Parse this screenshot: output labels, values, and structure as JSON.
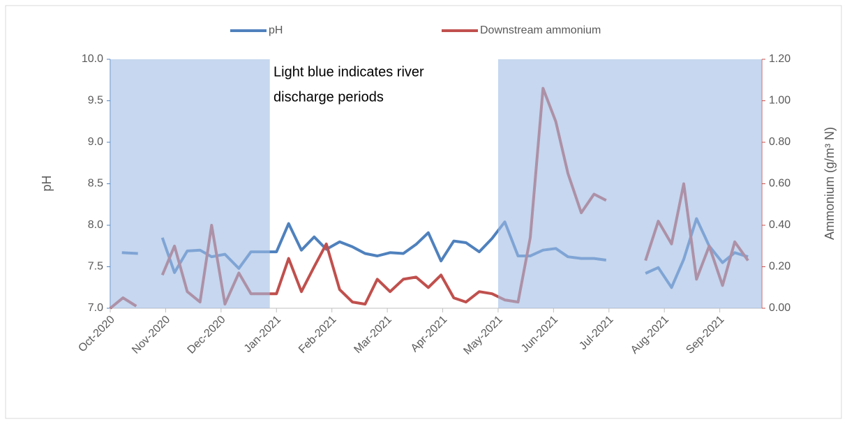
{
  "chart_data": {
    "type": "line",
    "annotation": [
      "Light blue indicates  river",
      "discharge periods"
    ],
    "y_label": "pH",
    "y2_label": "Ammonium (g/m³ N)",
    "xlim": [
      0,
      11.76
    ],
    "xticks": [
      {
        "value": 0,
        "label": "Oct-2020"
      },
      {
        "value": 1,
        "label": "Nov-2020"
      },
      {
        "value": 2,
        "label": "Dec-2020"
      },
      {
        "value": 3,
        "label": "Jan-2021"
      },
      {
        "value": 4,
        "label": "Feb-2021"
      },
      {
        "value": 5,
        "label": "Mar-2021"
      },
      {
        "value": 6,
        "label": "Apr-2021"
      },
      {
        "value": 7,
        "label": "May-2021"
      },
      {
        "value": 8,
        "label": "Jun-2021"
      },
      {
        "value": 9,
        "label": "Jul-2021"
      },
      {
        "value": 10,
        "label": "Aug-2021"
      },
      {
        "value": 11,
        "label": "Sep-2021"
      }
    ],
    "ylim": [
      7,
      10
    ],
    "yticks": [
      {
        "value": 7,
        "label": "7.0"
      },
      {
        "value": 7.5,
        "label": "7.5"
      },
      {
        "value": 8,
        "label": "8.0"
      },
      {
        "value": 8.5,
        "label": "8.5"
      },
      {
        "value": 9,
        "label": "9.0"
      },
      {
        "value": 9.5,
        "label": "9.5"
      },
      {
        "value": 10,
        "label": "10.0"
      }
    ],
    "y2lim": [
      0,
      1.2
    ],
    "y2ticks": [
      {
        "value": 0,
        "label": "0.00"
      },
      {
        "value": 0.2,
        "label": "0.20"
      },
      {
        "value": 0.4,
        "label": "0.40"
      },
      {
        "value": 0.6,
        "label": "0.60"
      },
      {
        "value": 0.8,
        "label": "0.80"
      },
      {
        "value": 1,
        "label": "1.00"
      },
      {
        "value": 1.2,
        "label": "1.20"
      }
    ],
    "shading": {
      "color": "#a0bde4",
      "ranges": [
        [
          0,
          2.88
        ],
        [
          7,
          11.76
        ]
      ]
    },
    "series": [
      {
        "name": "pH",
        "color": "#4f81bd",
        "x": [
          0.21,
          0.5,
          0.72,
          0.94,
          1.16,
          1.39,
          1.62,
          1.83,
          2.07,
          2.32,
          2.54,
          2.77,
          3.0,
          3.22,
          3.45,
          3.68,
          3.9,
          4.14,
          4.37,
          4.6,
          4.82,
          5.05,
          5.29,
          5.52,
          5.74,
          5.97,
          6.2,
          6.42,
          6.66,
          6.89,
          7.12,
          7.36,
          7.58,
          7.81,
          8.04,
          8.26,
          8.5,
          8.73,
          8.95,
          9.3,
          9.66,
          9.89,
          10.13,
          10.35,
          10.58,
          10.81,
          11.05,
          11.27,
          11.51
        ],
        "values": [
          7.67,
          7.66,
          null,
          7.85,
          7.43,
          7.69,
          7.7,
          7.62,
          7.65,
          7.48,
          7.68,
          7.68,
          7.68,
          8.02,
          7.7,
          7.86,
          7.71,
          7.8,
          7.74,
          7.66,
          7.63,
          7.67,
          7.66,
          7.77,
          7.91,
          7.57,
          7.81,
          7.79,
          7.68,
          7.84,
          8.04,
          7.63,
          7.63,
          7.7,
          7.72,
          7.62,
          7.6,
          7.6,
          7.58,
          null,
          7.42,
          7.49,
          7.25,
          7.59,
          8.08,
          7.75,
          7.55,
          7.67,
          7.62
        ]
      },
      {
        "name": "Downstream  ammonium",
        "color": "#c0504d",
        "axis": "y2",
        "x": [
          0,
          0.23,
          0.47,
          0.72,
          0.94,
          1.16,
          1.39,
          1.62,
          1.83,
          2.07,
          2.32,
          2.54,
          2.77,
          3.0,
          3.22,
          3.45,
          3.68,
          3.9,
          4.14,
          4.37,
          4.6,
          4.82,
          5.05,
          5.29,
          5.52,
          5.74,
          5.97,
          6.2,
          6.42,
          6.66,
          6.89,
          7.12,
          7.36,
          7.58,
          7.81,
          8.04,
          8.26,
          8.5,
          8.73,
          8.95,
          9.3,
          9.66,
          9.89,
          10.13,
          10.35,
          10.58,
          10.81,
          11.05,
          11.27,
          11.51
        ],
        "values": [
          0.0,
          0.05,
          0.01,
          null,
          0.16,
          0.3,
          0.08,
          0.03,
          0.4,
          0.02,
          0.17,
          0.07,
          0.07,
          0.07,
          0.24,
          0.08,
          0.2,
          0.31,
          0.09,
          0.03,
          0.02,
          0.14,
          0.08,
          0.14,
          0.15,
          0.1,
          0.16,
          0.05,
          0.03,
          0.08,
          0.07,
          0.04,
          0.03,
          0.34,
          1.06,
          0.9,
          0.65,
          0.46,
          0.55,
          0.52,
          null,
          0.23,
          0.42,
          0.31,
          0.6,
          0.14,
          0.3,
          0.11,
          0.32,
          0.23
        ]
      }
    ]
  }
}
